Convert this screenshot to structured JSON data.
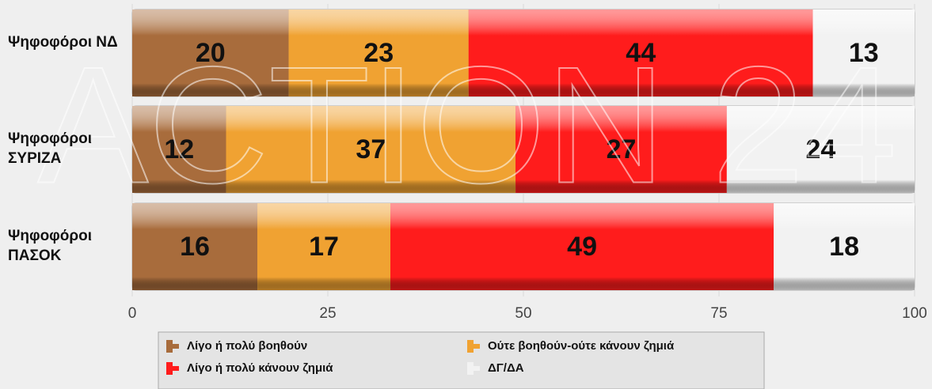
{
  "chart_data": {
    "type": "stacked_barh",
    "watermark": "ACTION 24",
    "categories": [
      "Ψηφοφόροι ΝΔ",
      "Ψηφοφόροι ΣΥΡΙΖΑ",
      "Ψηφοφόροι ΠΑΣΟΚ"
    ],
    "series": [
      {
        "name": "Λίγο ή πολύ  βοηθούν",
        "color": "#a86c3c",
        "values": [
          20,
          12,
          16
        ]
      },
      {
        "name": "Ούτε βοηθούν-ούτε κάνουν ζημιά",
        "color": "#f0a232",
        "values": [
          23,
          37,
          17
        ]
      },
      {
        "name": "Λίγο ή πολύ κάνουν ζημιά",
        "color": "#ff1c1c",
        "values": [
          44,
          27,
          49
        ]
      },
      {
        "name": "ΔΓ/ΔΑ",
        "color": "#f2f2f2",
        "values": [
          13,
          24,
          18
        ]
      }
    ],
    "xlim": [
      0,
      100
    ],
    "xticks": [
      0,
      25,
      50,
      75,
      100
    ],
    "grid": true
  }
}
